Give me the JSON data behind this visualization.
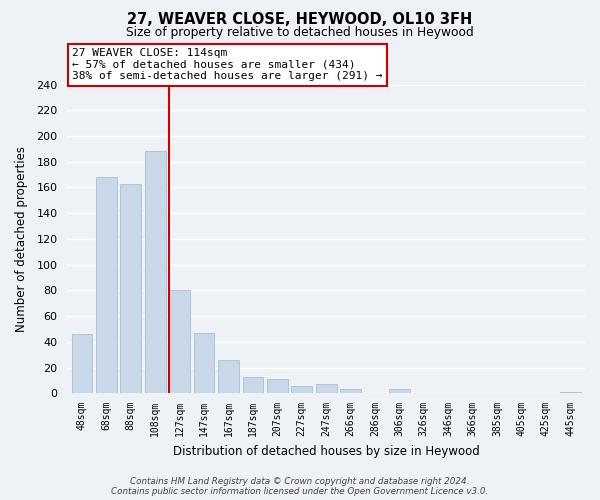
{
  "title": "27, WEAVER CLOSE, HEYWOOD, OL10 3FH",
  "subtitle": "Size of property relative to detached houses in Heywood",
  "xlabel": "Distribution of detached houses by size in Heywood",
  "ylabel": "Number of detached properties",
  "bar_labels": [
    "48sqm",
    "68sqm",
    "88sqm",
    "108sqm",
    "127sqm",
    "147sqm",
    "167sqm",
    "187sqm",
    "207sqm",
    "227sqm",
    "247sqm",
    "266sqm",
    "286sqm",
    "306sqm",
    "326sqm",
    "346sqm",
    "366sqm",
    "385sqm",
    "405sqm",
    "425sqm",
    "445sqm"
  ],
  "bar_values": [
    46,
    168,
    163,
    188,
    80,
    47,
    26,
    13,
    11,
    6,
    7,
    3,
    0,
    3,
    0,
    0,
    0,
    0,
    0,
    0,
    1
  ],
  "bar_color": "#c8d8e8",
  "bar_edge_color": "#a8c0d0",
  "vline_x": 3.57,
  "vline_color": "#cc0000",
  "annotation_line1": "27 WEAVER CLOSE: 114sqm",
  "annotation_line2": "← 57% of detached houses are smaller (434)",
  "annotation_line3": "38% of semi-detached houses are larger (291) →",
  "ylim": [
    0,
    240
  ],
  "yticks": [
    0,
    20,
    40,
    60,
    80,
    100,
    120,
    140,
    160,
    180,
    200,
    220,
    240
  ],
  "footer_text": "Contains HM Land Registry data © Crown copyright and database right 2024.\nContains public sector information licensed under the Open Government Licence v3.0.",
  "bg_color": "#eef2f7",
  "plot_bg_color": "#eef2f7",
  "grid_color": "#ffffff"
}
